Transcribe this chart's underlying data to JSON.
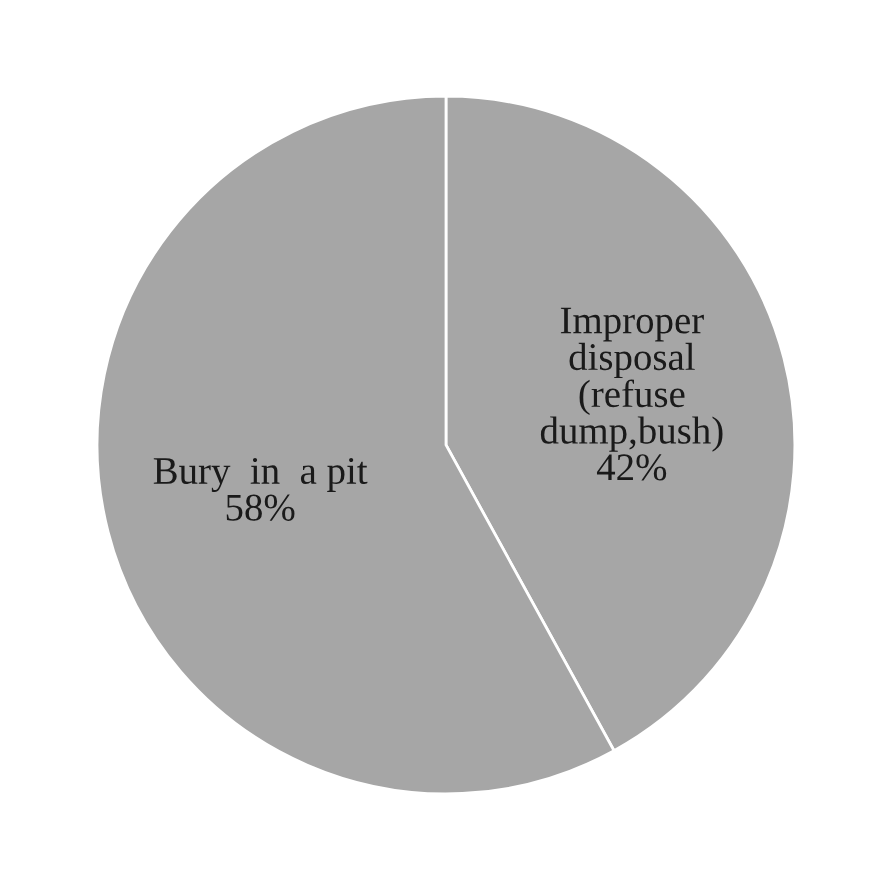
{
  "chart_data": {
    "type": "pie",
    "categories": [
      "Improper\ndisposal\n(refuse\ndump,bush)",
      "Bury  in  a pit"
    ],
    "values": [
      42,
      58
    ],
    "value_labels": [
      "42%",
      "58%"
    ],
    "colors": [
      "#a6a6a6",
      "#a6a6a6"
    ]
  }
}
